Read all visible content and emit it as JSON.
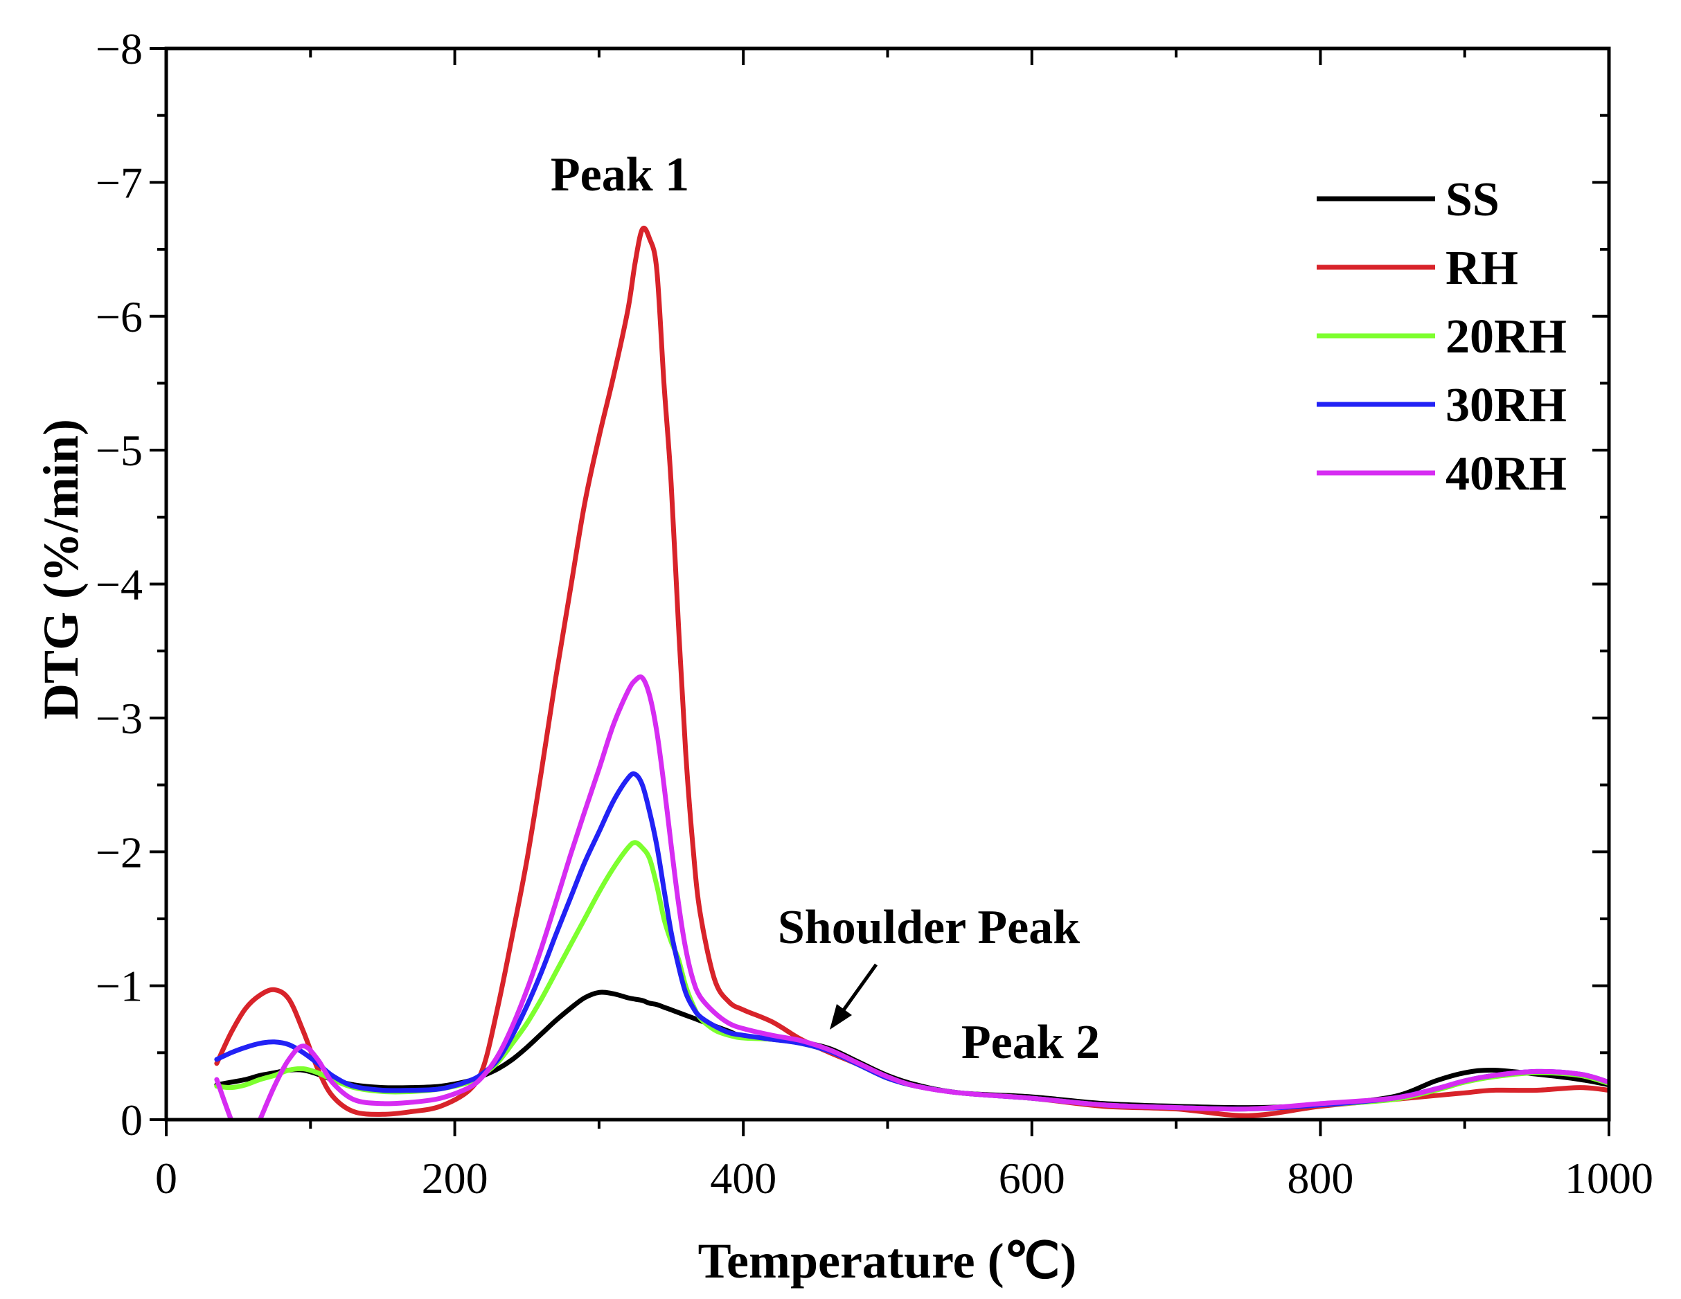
{
  "chart_data": {
    "type": "line",
    "xlabel": "Temperature (℃)",
    "ylabel": "DTG (%/min)",
    "xlim": [
      0,
      1000
    ],
    "ylim": [
      0,
      -8
    ],
    "grid": false,
    "legend_position": "top-right",
    "xticks": [
      0,
      200,
      400,
      600,
      800,
      1000
    ],
    "xtick_labels": [
      "0",
      "200",
      "400",
      "600",
      "800",
      "1000"
    ],
    "yticks": [
      0,
      -1,
      -2,
      -3,
      -4,
      -5,
      -6,
      -7,
      -8
    ],
    "ytick_labels": [
      "0",
      "−1",
      "−2",
      "−3",
      "−4",
      "−5",
      "−6",
      "−7",
      "−8"
    ],
    "annotations": [
      "Peak 1",
      "Shoulder Peak",
      "Peak 2"
    ],
    "x": [
      35,
      45,
      55,
      65,
      75,
      85,
      95,
      105,
      115,
      130,
      150,
      170,
      190,
      210,
      220,
      230,
      240,
      250,
      260,
      270,
      280,
      290,
      300,
      310,
      320,
      325,
      330,
      335,
      340,
      345,
      350,
      355,
      360,
      365,
      370,
      380,
      390,
      400,
      420,
      440,
      460,
      480,
      500,
      520,
      550,
      600,
      650,
      700,
      750,
      800,
      850,
      880,
      900,
      920,
      950,
      980,
      1000
    ],
    "series": [
      {
        "name": "SS",
        "color": "#000000",
        "values": [
          -0.26,
          -0.28,
          -0.3,
          -0.33,
          -0.35,
          -0.37,
          -0.37,
          -0.34,
          -0.3,
          -0.26,
          -0.24,
          -0.24,
          -0.25,
          -0.29,
          -0.33,
          -0.38,
          -0.45,
          -0.54,
          -0.64,
          -0.74,
          -0.83,
          -0.91,
          -0.95,
          -0.94,
          -0.91,
          -0.9,
          -0.89,
          -0.87,
          -0.86,
          -0.84,
          -0.82,
          -0.8,
          -0.78,
          -0.76,
          -0.74,
          -0.7,
          -0.66,
          -0.62,
          -0.6,
          -0.58,
          -0.53,
          -0.43,
          -0.33,
          -0.26,
          -0.2,
          -0.17,
          -0.12,
          -0.1,
          -0.09,
          -0.11,
          -0.17,
          -0.29,
          -0.35,
          -0.37,
          -0.34,
          -0.3,
          -0.26
        ]
      },
      {
        "name": "RH",
        "color": "#d8232a",
        "values": [
          -0.42,
          -0.65,
          -0.83,
          -0.93,
          -0.97,
          -0.9,
          -0.66,
          -0.38,
          -0.18,
          -0.06,
          -0.04,
          -0.06,
          -0.1,
          -0.22,
          -0.4,
          -0.85,
          -1.38,
          -1.94,
          -2.6,
          -3.3,
          -3.95,
          -4.6,
          -5.1,
          -5.55,
          -6.05,
          -6.4,
          -6.65,
          -6.58,
          -6.35,
          -5.5,
          -4.75,
          -3.7,
          -2.75,
          -2.05,
          -1.55,
          -1.05,
          -0.88,
          -0.82,
          -0.73,
          -0.6,
          -0.5,
          -0.41,
          -0.31,
          -0.25,
          -0.2,
          -0.16,
          -0.1,
          -0.08,
          -0.03,
          -0.1,
          -0.15,
          -0.18,
          -0.2,
          -0.22,
          -0.22,
          -0.24,
          -0.22
        ]
      },
      {
        "name": "20RH",
        "color": "#7dff2e",
        "values": [
          -0.25,
          -0.24,
          -0.26,
          -0.3,
          -0.33,
          -0.37,
          -0.38,
          -0.35,
          -0.3,
          -0.24,
          -0.21,
          -0.21,
          -0.23,
          -0.28,
          -0.34,
          -0.43,
          -0.57,
          -0.72,
          -0.9,
          -1.1,
          -1.3,
          -1.5,
          -1.7,
          -1.88,
          -2.03,
          -2.07,
          -2.03,
          -1.95,
          -1.75,
          -1.5,
          -1.33,
          -1.2,
          -1.0,
          -0.86,
          -0.76,
          -0.67,
          -0.63,
          -0.61,
          -0.6,
          -0.57,
          -0.51,
          -0.41,
          -0.31,
          -0.25,
          -0.2,
          -0.16,
          -0.11,
          -0.09,
          -0.08,
          -0.11,
          -0.15,
          -0.22,
          -0.28,
          -0.32,
          -0.35,
          -0.33,
          -0.27
        ]
      },
      {
        "name": "30RH",
        "color": "#2222f5",
        "values": [
          -0.45,
          -0.5,
          -0.54,
          -0.57,
          -0.58,
          -0.56,
          -0.5,
          -0.42,
          -0.33,
          -0.25,
          -0.22,
          -0.22,
          -0.23,
          -0.29,
          -0.35,
          -0.45,
          -0.63,
          -0.85,
          -1.1,
          -1.38,
          -1.65,
          -1.92,
          -2.15,
          -2.38,
          -2.55,
          -2.58,
          -2.5,
          -2.3,
          -2.05,
          -1.72,
          -1.4,
          -1.15,
          -0.95,
          -0.84,
          -0.77,
          -0.7,
          -0.65,
          -0.63,
          -0.6,
          -0.57,
          -0.51,
          -0.41,
          -0.31,
          -0.25,
          -0.2,
          -0.16,
          -0.11,
          -0.09,
          -0.08,
          -0.11,
          -0.16,
          -0.23,
          -0.29,
          -0.33,
          -0.36,
          -0.34,
          -0.28
        ]
      },
      {
        "name": "40RH",
        "color": "#d62cf2",
        "values": [
          -0.3,
          0.0,
          0.25,
          0.0,
          -0.25,
          -0.45,
          -0.55,
          -0.45,
          -0.28,
          -0.15,
          -0.12,
          -0.13,
          -0.16,
          -0.24,
          -0.33,
          -0.48,
          -0.7,
          -0.97,
          -1.28,
          -1.62,
          -1.97,
          -2.3,
          -2.62,
          -2.95,
          -3.2,
          -3.28,
          -3.3,
          -3.17,
          -2.9,
          -2.5,
          -2.05,
          -1.62,
          -1.28,
          -1.05,
          -0.92,
          -0.8,
          -0.72,
          -0.68,
          -0.63,
          -0.59,
          -0.52,
          -0.42,
          -0.32,
          -0.25,
          -0.2,
          -0.16,
          -0.11,
          -0.09,
          -0.08,
          -0.12,
          -0.16,
          -0.23,
          -0.29,
          -0.33,
          -0.36,
          -0.34,
          -0.28
        ]
      }
    ]
  }
}
